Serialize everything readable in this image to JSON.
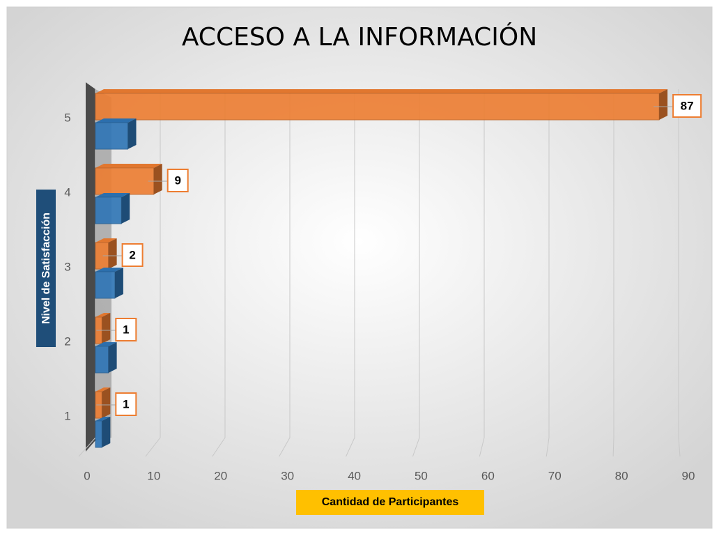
{
  "chart_data": {
    "type": "bar3d-horizontal",
    "title": "ACCESO A LA INFORMACIÓN",
    "x_label": "Cantidad de Participantes",
    "y_label": "Nivel de Satisfacción",
    "categories": [
      "1",
      "2",
      "3",
      "4",
      "5"
    ],
    "series": [
      {
        "color": "#ed7d31",
        "values": [
          1,
          1,
          2,
          9,
          87
        ],
        "data_labels": true
      },
      {
        "color": "#2e75b6",
        "values": [
          1,
          2,
          3,
          4,
          5
        ],
        "data_labels": false
      }
    ],
    "xlim": [
      0,
      90
    ],
    "xticks": [
      0,
      10,
      20,
      30,
      40,
      50,
      60,
      70,
      80,
      90
    ],
    "grid": true
  }
}
